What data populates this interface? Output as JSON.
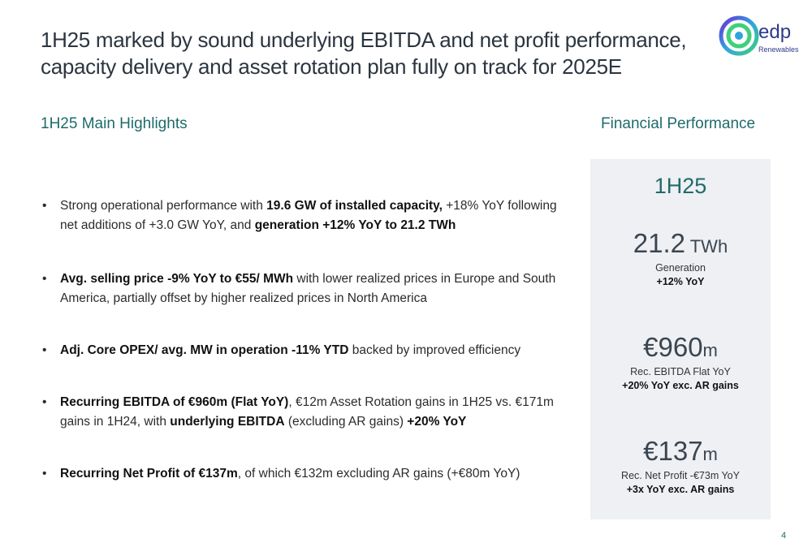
{
  "header": {
    "title": "1H25 marked by sound underlying EBITDA and net profit performance, capacity delivery and asset rotation plan fully on track for 2025E",
    "logo_text": "edp",
    "logo_subtext": "Renewables"
  },
  "left_section": {
    "heading": "1H25 Main Highlights",
    "bullets": [
      {
        "parts": [
          {
            "t": "Strong operational performance with ",
            "b": false
          },
          {
            "t": "19.6 GW of installed capacity,",
            "b": true
          },
          {
            "t": " +18% YoY following net additions of +3.0 GW YoY, and ",
            "b": false
          },
          {
            "t": "generation +12% YoY to 21.2 TWh",
            "b": true
          }
        ]
      },
      {
        "parts": [
          {
            "t": "Avg. selling price -9% YoY to €55/ MWh",
            "b": true
          },
          {
            "t": " with lower realized prices in Europe and South America, partially offset by higher realized prices in North America",
            "b": false
          }
        ]
      },
      {
        "parts": [
          {
            "t": "Adj. Core OPEX/ avg. MW in operation -11% YTD",
            "b": true
          },
          {
            "t": " backed by improved efficiency",
            "b": false
          }
        ]
      },
      {
        "parts": [
          {
            "t": "Recurring EBITDA of €960m (Flat YoY)",
            "b": true
          },
          {
            "t": ", €12m Asset Rotation gains in 1H25 vs. €171m gains in 1H24, with ",
            "b": false
          },
          {
            "t": "underlying EBITDA",
            "b": true
          },
          {
            "t": " (excluding AR gains) ",
            "b": false
          },
          {
            "t": "+20% YoY",
            "b": true
          }
        ]
      },
      {
        "parts": [
          {
            "t": "Recurring Net Profit of €137m",
            "b": true
          },
          {
            "t": ", of which €132m excluding AR gains (+€80m YoY)",
            "b": false
          }
        ]
      }
    ]
  },
  "right_section": {
    "heading": "Financial Performance",
    "period": "1H25",
    "metrics": [
      {
        "prefix": "",
        "value": "21.2",
        "unit": " TWh",
        "label": "Generation",
        "change": "+12% YoY"
      },
      {
        "prefix": "€",
        "value": "960",
        "unit": "m",
        "label": "Rec. EBITDA Flat YoY",
        "change": "+20% YoY exc. AR gains"
      },
      {
        "prefix": "€",
        "value": "137",
        "unit": "m",
        "label": "Rec. Net Profit -€73m YoY",
        "change": "+3x YoY exc. AR gains"
      }
    ]
  },
  "footer": {
    "page_number": "4"
  },
  "colors": {
    "accent_teal": "#1f6b6b",
    "panel_bg": "#eef0f3",
    "title": "#2b3540"
  }
}
